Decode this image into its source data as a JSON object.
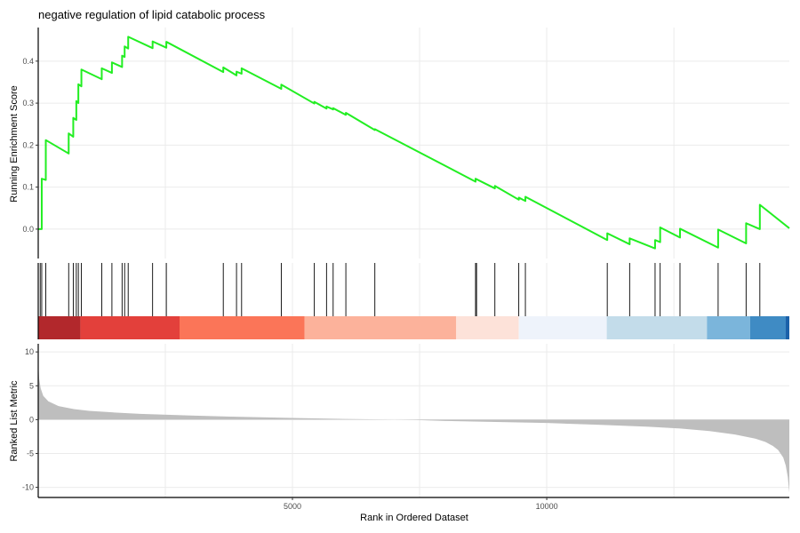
{
  "chart_data": {
    "type": "line",
    "title": "negative regulation of lipid catabolic process",
    "xlabel": "Rank in Ordered Dataset",
    "x_range": [
      1,
      14770
    ],
    "x_ticks": [
      5000,
      10000
    ],
    "grid": true,
    "colors": {
      "curve": "#22ee22",
      "hit": "#000000",
      "metric_fill": "#bebebe",
      "gridline": "#ebebeb",
      "axis": "#000000"
    },
    "panels": {
      "es": {
        "ylabel": "Running Enrichment Score",
        "ylim": [
          -0.07,
          0.48
        ],
        "y_ticks": [
          0.0,
          0.1,
          0.2,
          0.3,
          0.4
        ],
        "y_tick_labels": [
          "0.0",
          "0.1",
          "0.2",
          "0.3",
          "0.4"
        ],
        "series": [
          {
            "x": [
              1,
              40,
              70,
              70,
              150,
              150,
              600,
              600,
              690,
              690,
              750,
              750,
              790,
              790,
              850,
              850,
              1250,
              1250,
              1450,
              1450,
              1650,
              1650,
              1700,
              1700,
              1770,
              1770,
              2250,
              2250,
              2520,
              2520,
              3640,
              3640,
              3900,
              3900,
              4000,
              4000,
              4780,
              4780,
              5430,
              5430,
              5670,
              5670,
              5800,
              5800,
              6050,
              6050,
              6620,
              6620,
              8600,
              8600,
              8980,
              8980,
              9450,
              9450,
              9580,
              9580,
              11190,
              11190,
              11630,
              11630,
              12130,
              12130,
              12230,
              12230,
              12620,
              12620,
              13370,
              13370,
              13920,
              13920,
              14190,
              14190,
              14770
            ],
            "y": [
              0.0,
              0.0,
              0.0,
              0.12,
              0.117,
              0.212,
              0.18,
              0.228,
              0.22,
              0.265,
              0.26,
              0.305,
              0.3,
              0.345,
              0.34,
              0.38,
              0.357,
              0.383,
              0.372,
              0.397,
              0.386,
              0.413,
              0.41,
              0.435,
              0.43,
              0.458,
              0.431,
              0.447,
              0.432,
              0.446,
              0.374,
              0.385,
              0.366,
              0.375,
              0.37,
              0.383,
              0.334,
              0.344,
              0.299,
              0.303,
              0.287,
              0.292,
              0.285,
              0.288,
              0.272,
              0.277,
              0.236,
              0.238,
              0.113,
              0.12,
              0.097,
              0.103,
              0.07,
              0.075,
              0.067,
              0.077,
              -0.026,
              -0.01,
              -0.036,
              -0.022,
              -0.046,
              -0.026,
              -0.031,
              0.004,
              -0.02,
              0.001,
              -0.044,
              -0.001,
              -0.034,
              0.014,
              0.0,
              0.058,
              0.002
            ]
          }
        ]
      },
      "hits": {
        "positions": [
          40,
          70,
          150,
          600,
          690,
          750,
          790,
          850,
          1250,
          1450,
          1650,
          1700,
          1770,
          2250,
          2520,
          3640,
          3900,
          4000,
          4780,
          5430,
          5670,
          5800,
          6050,
          6620,
          8600,
          8620,
          8980,
          9450,
          9580,
          11190,
          11630,
          12130,
          12230,
          12620,
          13370,
          13920,
          14190
        ]
      },
      "color_bar": {
        "segments": [
          {
            "from": 1,
            "to": 830,
            "color": "#b2282c"
          },
          {
            "from": 830,
            "to": 2780,
            "color": "#e3403b"
          },
          {
            "from": 2780,
            "to": 5240,
            "color": "#fb7558"
          },
          {
            "from": 5240,
            "to": 8220,
            "color": "#fcb29b"
          },
          {
            "from": 8220,
            "to": 9450,
            "color": "#fde2d9"
          },
          {
            "from": 9450,
            "to": 11180,
            "color": "#eef3fb"
          },
          {
            "from": 11180,
            "to": 13150,
            "color": "#c3dcea"
          },
          {
            "from": 13150,
            "to": 14000,
            "color": "#7bb5db"
          },
          {
            "from": 14000,
            "to": 14700,
            "color": "#3f8bc4"
          },
          {
            "from": 14700,
            "to": 14770,
            "color": "#1b61a9"
          }
        ]
      },
      "metric": {
        "ylabel": "Ranked List Metric",
        "ylim": [
          -11.5,
          11.2
        ],
        "y_ticks": [
          -10,
          -5,
          0,
          5,
          10
        ],
        "y_tick_labels": [
          "-10",
          "-5",
          "0",
          "5",
          "10"
        ],
        "series": [
          {
            "x": [
              1,
              20,
              50,
              100,
              200,
              400,
              700,
              1000,
              1500,
              2000,
              3000,
              4000,
              5000,
              6000,
              7000,
              7400,
              8000,
              9000,
              10000,
              11000,
              12000,
              12600,
              13200,
              13700,
              14100,
              14300,
              14450,
              14550,
              14650,
              14700,
              14740,
              14770
            ],
            "y": [
              8.2,
              6.0,
              4.6,
              3.5,
              2.7,
              2.0,
              1.55,
              1.3,
              1.05,
              0.85,
              0.6,
              0.4,
              0.25,
              0.1,
              0.0,
              -0.05,
              -0.2,
              -0.35,
              -0.5,
              -0.75,
              -1.05,
              -1.3,
              -1.7,
              -2.2,
              -2.8,
              -3.3,
              -3.9,
              -4.5,
              -5.6,
              -6.8,
              -8.5,
              -10.8
            ]
          }
        ]
      }
    }
  }
}
